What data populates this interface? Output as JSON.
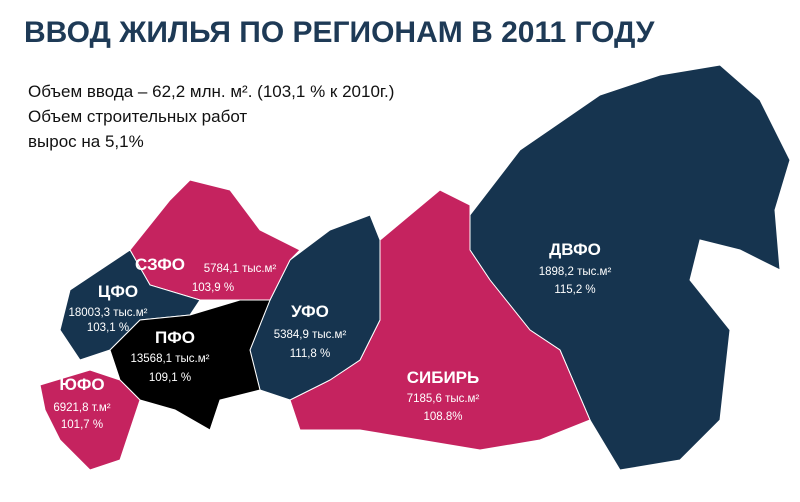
{
  "header": {
    "title": "ВВОД ЖИЛЬЯ ПО РЕГИОНАМ В  2011  ГОДУ",
    "lines": [
      "Объем ввода – 62,2 млн. м². (103,1 % к 2010г.)",
      "Объем строительных работ",
      "вырос на 5,1%"
    ]
  },
  "regions": [
    {
      "name": "СЗФО",
      "volume": "5784,1 тыс.м²",
      "growth": "103,9 %"
    },
    {
      "name": "ЦФО",
      "volume": "18003,3 тыс.м²",
      "growth": "103,1 %"
    },
    {
      "name": "ПФО",
      "volume": "13568,1 тыс.м²",
      "growth": "109,1 %"
    },
    {
      "name": "ЮФО",
      "volume": "6921,8 т.м²",
      "growth": "101,7 %"
    },
    {
      "name": "УФО",
      "volume": "5384,9 тыс.м²",
      "growth": "111,8 %"
    },
    {
      "name": "СИБИРЬ",
      "volume": "7185,6 тыс.м²",
      "growth": "108.8%"
    },
    {
      "name": "ДВФО",
      "volume": "1898,2 тыс.м²",
      "growth": "115,2 %"
    }
  ]
}
